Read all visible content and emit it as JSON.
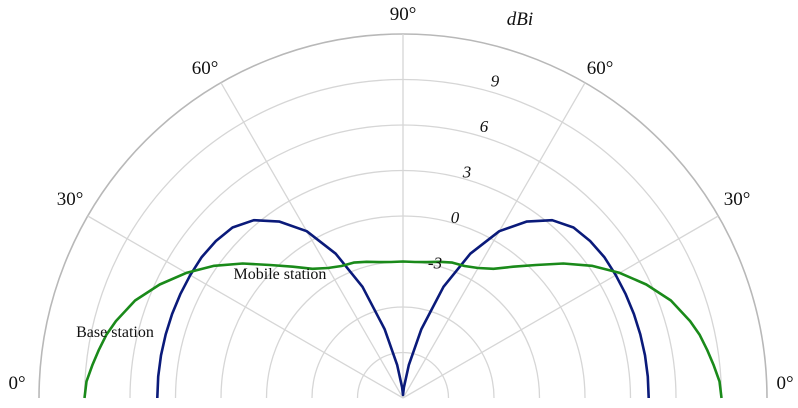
{
  "chart_data": {
    "type": "polar-semicircle",
    "radial_unit": "dBi",
    "radial_ticks": [
      -3,
      0,
      3,
      6,
      9
    ],
    "radial_range": [
      -12,
      12
    ],
    "angle_labels": [
      {
        "text": "0°",
        "angle": 0,
        "side": "left"
      },
      {
        "text": "30°",
        "angle": 30,
        "side": "left"
      },
      {
        "text": "60°",
        "angle": 60,
        "side": "left"
      },
      {
        "text": "90°",
        "angle": 90,
        "side": "center"
      },
      {
        "text": "60°",
        "angle": 60,
        "side": "right"
      },
      {
        "text": "30°",
        "angle": 30,
        "side": "right"
      },
      {
        "text": "0°",
        "angle": 0,
        "side": "right"
      }
    ],
    "grid": true,
    "series": [
      {
        "name": "Mobile station",
        "color": "#0a1a7a",
        "x_angle_deg": [
          0,
          5,
          10,
          15,
          20,
          25,
          30,
          35,
          40,
          45,
          50,
          55,
          60,
          65,
          70,
          75,
          80,
          85,
          90,
          95,
          100,
          105,
          110,
          115,
          120,
          125,
          130,
          135,
          140,
          145,
          150,
          155,
          160,
          165,
          170,
          175,
          180
        ],
        "y_dbi": [
          4.2,
          4.2,
          4.2,
          4.2,
          4.2,
          4.2,
          4.2,
          4.2,
          4.1,
          3.9,
          3.3,
          2.2,
          0.7,
          -1.5,
          -4.2,
          -7.3,
          -9.8,
          -11.3,
          -11.8,
          -11.3,
          -9.8,
          -7.3,
          -4.2,
          -1.5,
          0.7,
          2.2,
          3.3,
          3.9,
          4.1,
          4.2,
          4.2,
          4.2,
          4.2,
          4.2,
          4.2,
          4.2,
          4.2
        ]
      },
      {
        "name": "Base station",
        "color": "#1a8a1a",
        "x_angle_deg": [
          0,
          3,
          6,
          9,
          12,
          15,
          20,
          25,
          30,
          35,
          40,
          45,
          50,
          55,
          60,
          65,
          70,
          75,
          80,
          85,
          90,
          95,
          100,
          105,
          110,
          115,
          120,
          125,
          130,
          135,
          140,
          145,
          150,
          155,
          160,
          165,
          168,
          171,
          174,
          177,
          180
        ],
        "y_dbi": [
          9.0,
          8.9,
          8.6,
          8.3,
          8.0,
          7.6,
          6.8,
          5.7,
          4.5,
          3.2,
          1.8,
          0.4,
          -0.7,
          -1.6,
          -2.1,
          -2.4,
          -2.5,
          -2.7,
          -2.9,
          -3.0,
          -3.0,
          -3.0,
          -2.9,
          -2.7,
          -2.5,
          -2.4,
          -2.1,
          -1.6,
          -0.7,
          0.4,
          1.8,
          3.2,
          4.5,
          5.7,
          6.8,
          7.6,
          8.0,
          8.3,
          8.6,
          8.9,
          9.0
        ]
      }
    ],
    "annotations": [
      {
        "text": "Mobile station",
        "series": "Mobile station"
      },
      {
        "text": "Base station",
        "series": "Base station"
      }
    ]
  }
}
